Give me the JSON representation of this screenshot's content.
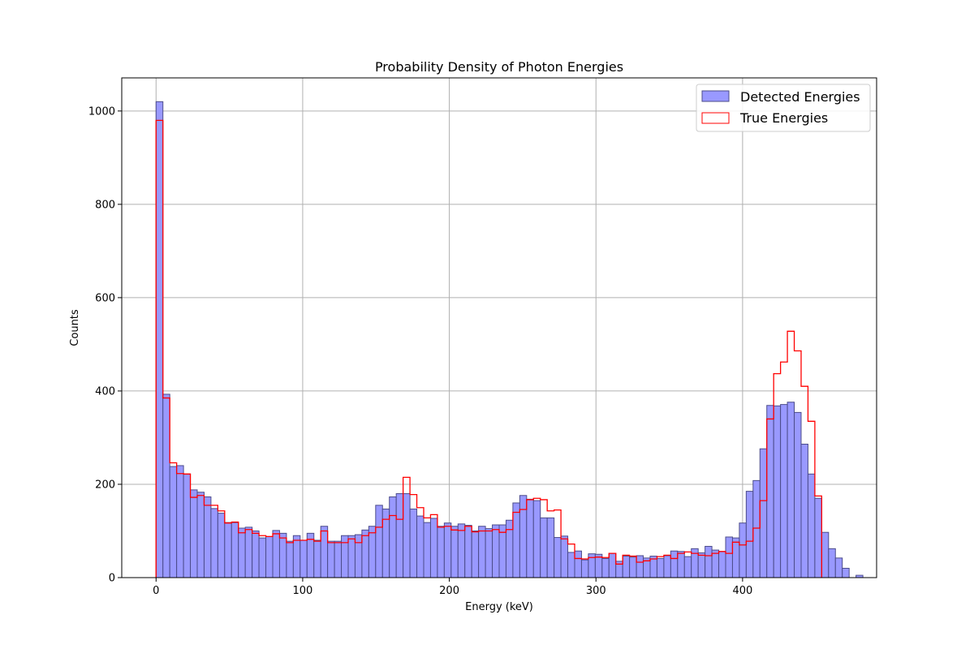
{
  "chart_data": {
    "type": "bar",
    "title": "Probability Density of Photon Energies",
    "xlabel": "Energy (keV)",
    "ylabel": "Counts",
    "xlim": [
      -23.4,
      491.4
    ],
    "ylim": [
      0,
      1071
    ],
    "xticks": [
      0,
      100,
      200,
      300,
      400
    ],
    "yticks": [
      0,
      200,
      400,
      600,
      800,
      1000
    ],
    "grid": true,
    "legend": {
      "placement": "top-right",
      "entries": [
        "Detected Energies",
        "True Energies"
      ]
    },
    "bin_width": 4.68,
    "colors": {
      "detected_fill": "#9999ff",
      "detected_edge": "#4c4c8a",
      "true_edge": "#ff0000",
      "grid": "#b0b0b0"
    },
    "series": [
      {
        "name": "Detected Energies",
        "style": "filled",
        "bin_start": 0,
        "values": [
          1020,
          393,
          238,
          240,
          222,
          188,
          183,
          173,
          148,
          138,
          118,
          118,
          106,
          108,
          100,
          85,
          88,
          101,
          95,
          78,
          90,
          80,
          95,
          80,
          110,
          78,
          78,
          90,
          90,
          92,
          102,
          110,
          155,
          147,
          173,
          180,
          180,
          147,
          132,
          118,
          127,
          110,
          117,
          110,
          115,
          112,
          100,
          110,
          105,
          113,
          113,
          123,
          160,
          176,
          168,
          165,
          128,
          128,
          86,
          89,
          54,
          57,
          38,
          51,
          50,
          41,
          52,
          35,
          46,
          44,
          47,
          42,
          46,
          41,
          47,
          57,
          56,
          45,
          62,
          53,
          67,
          59,
          56,
          87,
          85,
          117,
          185,
          208,
          276,
          369,
          368,
          371,
          376,
          354,
          286,
          222,
          170,
          97,
          62,
          42,
          20,
          0,
          5
        ]
      },
      {
        "name": "True Energies",
        "style": "step",
        "bin_start": 0,
        "values": [
          980,
          385,
          246,
          223,
          222,
          172,
          176,
          155,
          155,
          143,
          117,
          119,
          96,
          103,
          95,
          90,
          88,
          94,
          85,
          75,
          80,
          80,
          82,
          78,
          100,
          75,
          75,
          75,
          83,
          75,
          90,
          96,
          108,
          125,
          133,
          125,
          215,
          178,
          150,
          128,
          135,
          108,
          110,
          102,
          101,
          110,
          98,
          100,
          100,
          103,
          97,
          103,
          140,
          146,
          167,
          170,
          167,
          143,
          145,
          83,
          72,
          41,
          40,
          43,
          44,
          43,
          52,
          29,
          48,
          46,
          33,
          36,
          40,
          45,
          48,
          41,
          52,
          55,
          52,
          48,
          47,
          52,
          56,
          52,
          76,
          70,
          78,
          106,
          165,
          340,
          437,
          462,
          528,
          486,
          410,
          335,
          175
        ]
      }
    ]
  }
}
